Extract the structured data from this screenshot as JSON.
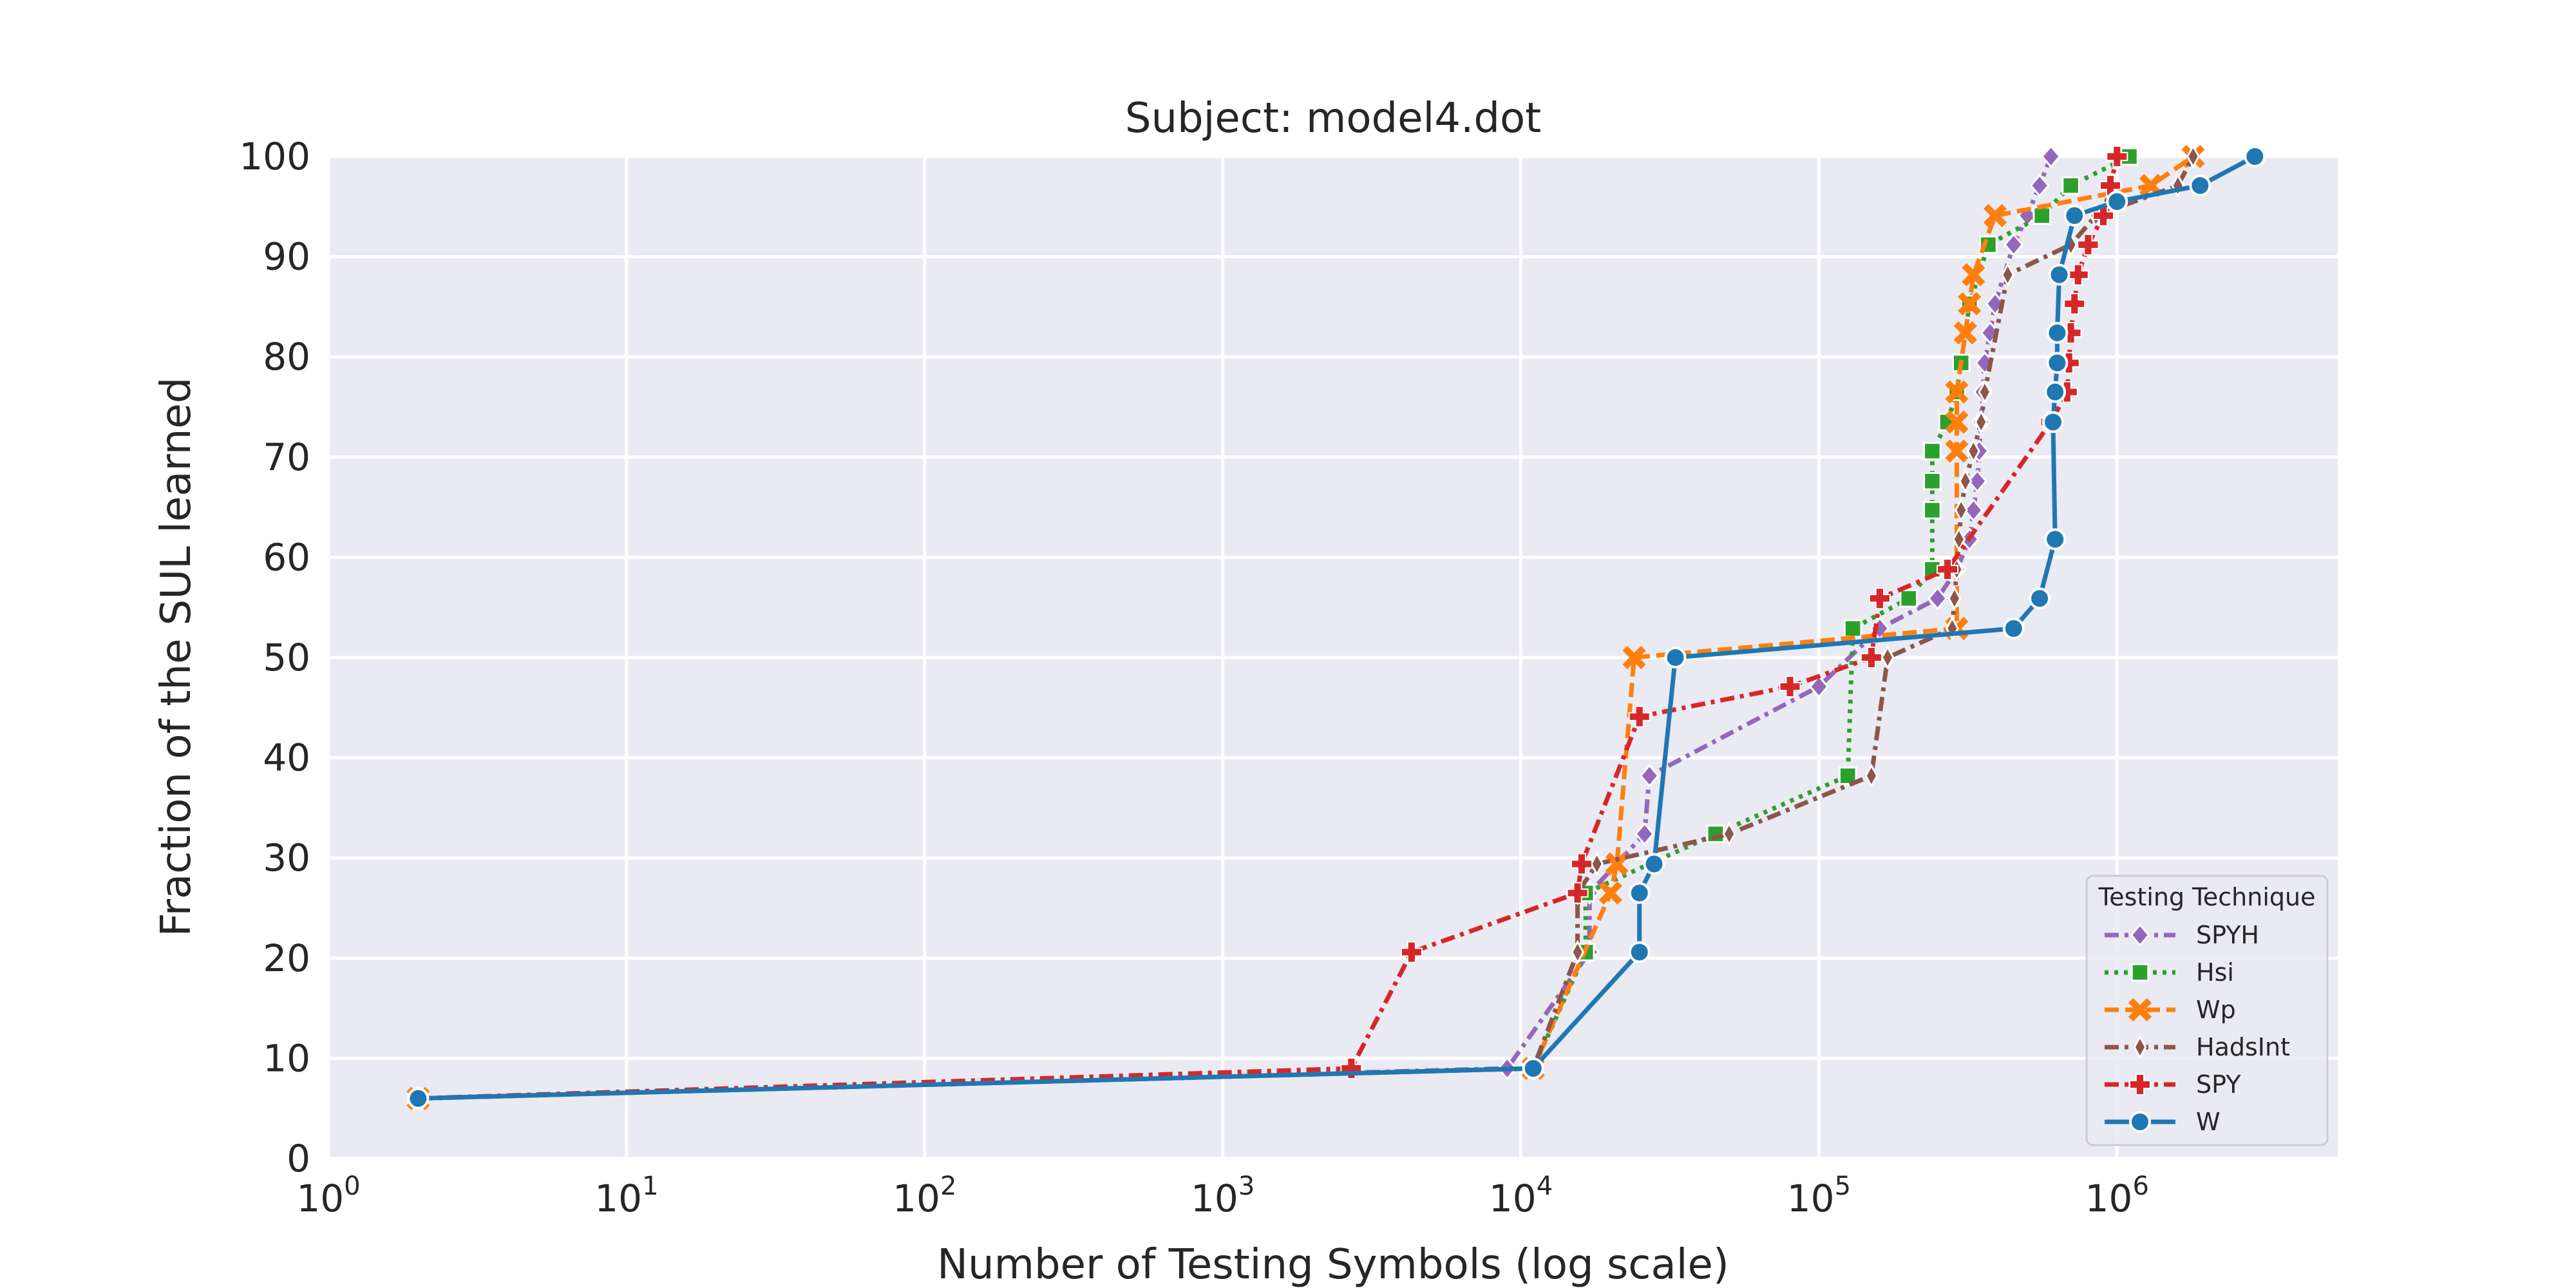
{
  "chart_data": {
    "type": "line",
    "title": "Subject: model4.dot",
    "xlabel": "Number of Testing Symbols (log scale)",
    "ylabel": "Fraction of the SUL learned",
    "x_scale": "log",
    "xlim": [
      1,
      5500000
    ],
    "ylim": [
      0,
      100
    ],
    "x_ticks": [
      {
        "base": "10",
        "exp": "0",
        "value": 1
      },
      {
        "base": "10",
        "exp": "1",
        "value": 10
      },
      {
        "base": "10",
        "exp": "2",
        "value": 100
      },
      {
        "base": "10",
        "exp": "3",
        "value": 1000
      },
      {
        "base": "10",
        "exp": "4",
        "value": 10000
      },
      {
        "base": "10",
        "exp": "5",
        "value": 100000
      },
      {
        "base": "10",
        "exp": "6",
        "value": 1000000
      }
    ],
    "y_ticks": [
      "0",
      "10",
      "20",
      "30",
      "40",
      "50",
      "60",
      "70",
      "80",
      "90",
      "100"
    ],
    "grid": true,
    "background": "#eaeaf2",
    "legend": {
      "title": "Testing Technique",
      "position": "lower-right"
    },
    "series": [
      {
        "name": "SPYH",
        "color": "#9467bd",
        "dash": "dashdot",
        "marker": "diamond",
        "points": [
          [
            2,
            6
          ],
          [
            9000,
            9
          ],
          [
            17000,
            20.6
          ],
          [
            17000,
            26.5
          ],
          [
            26000,
            32.4
          ],
          [
            27000,
            38.2
          ],
          [
            100000,
            47.1
          ],
          [
            160000,
            52.9
          ],
          [
            250000,
            55.9
          ],
          [
            290000,
            58.8
          ],
          [
            320000,
            61.8
          ],
          [
            330000,
            64.7
          ],
          [
            340000,
            67.6
          ],
          [
            345000,
            70.6
          ],
          [
            350000,
            73.5
          ],
          [
            355000,
            76.5
          ],
          [
            360000,
            79.4
          ],
          [
            375000,
            82.4
          ],
          [
            390000,
            85.3
          ],
          [
            450000,
            91.2
          ],
          [
            500000,
            94.1
          ],
          [
            550000,
            97.1
          ],
          [
            600000,
            100
          ]
        ]
      },
      {
        "name": "Hsi",
        "color": "#2ca02c",
        "dash": "dotted",
        "marker": "square",
        "points": [
          [
            2,
            6
          ],
          [
            11000,
            9
          ],
          [
            16500,
            20.6
          ],
          [
            16500,
            26.5
          ],
          [
            45000,
            32.4
          ],
          [
            125000,
            38.2
          ],
          [
            130000,
            52.9
          ],
          [
            200000,
            55.9
          ],
          [
            240000,
            58.8
          ],
          [
            240000,
            64.7
          ],
          [
            240000,
            67.6
          ],
          [
            240000,
            70.6
          ],
          [
            270000,
            73.5
          ],
          [
            290000,
            76.5
          ],
          [
            300000,
            79.4
          ],
          [
            320000,
            85.3
          ],
          [
            370000,
            91.2
          ],
          [
            560000,
            94.1
          ],
          [
            700000,
            97.1
          ],
          [
            1100000,
            100
          ]
        ]
      },
      {
        "name": "Wp",
        "color": "#ff7f0e",
        "dash": "dashed",
        "marker": "x",
        "points": [
          [
            2,
            6
          ],
          [
            11000,
            9
          ],
          [
            20000,
            26.5
          ],
          [
            21000,
            29.4
          ],
          [
            24000,
            50
          ],
          [
            290000,
            52.9
          ],
          [
            290000,
            70.6
          ],
          [
            290000,
            73.5
          ],
          [
            290000,
            76.5
          ],
          [
            310000,
            82.4
          ],
          [
            320000,
            85.3
          ],
          [
            330000,
            88.2
          ],
          [
            390000,
            94.1
          ],
          [
            1300000,
            97.1
          ],
          [
            1800000,
            100
          ]
        ]
      },
      {
        "name": "HadsInt",
        "color": "#8c564b",
        "dash": "dashdot",
        "marker": "thin_diamond",
        "points": [
          [
            2,
            6
          ],
          [
            11000,
            9
          ],
          [
            15500,
            20.6
          ],
          [
            15500,
            26.5
          ],
          [
            18000,
            29.4
          ],
          [
            50000,
            32.4
          ],
          [
            150000,
            38.2
          ],
          [
            170000,
            50
          ],
          [
            280000,
            52.9
          ],
          [
            285000,
            55.9
          ],
          [
            290000,
            58.8
          ],
          [
            295000,
            61.8
          ],
          [
            300000,
            64.7
          ],
          [
            310000,
            67.6
          ],
          [
            330000,
            70.6
          ],
          [
            350000,
            73.5
          ],
          [
            360000,
            76.5
          ],
          [
            430000,
            88.2
          ],
          [
            700000,
            91.2
          ],
          [
            850000,
            94.1
          ],
          [
            1600000,
            97.1
          ],
          [
            1800000,
            100
          ]
        ]
      },
      {
        "name": "SPY",
        "color": "#d62728",
        "dash": "dashdot",
        "marker": "plus",
        "points": [
          [
            2,
            6
          ],
          [
            2700,
            9
          ],
          [
            4300,
            20.6
          ],
          [
            15500,
            26.5
          ],
          [
            16000,
            29.4
          ],
          [
            25000,
            44.1
          ],
          [
            80000,
            47.1
          ],
          [
            150000,
            50
          ],
          [
            160000,
            55.9
          ],
          [
            270000,
            58.8
          ],
          [
            600000,
            73.5
          ],
          [
            680000,
            76.5
          ],
          [
            690000,
            79.4
          ],
          [
            700000,
            82.4
          ],
          [
            720000,
            85.3
          ],
          [
            740000,
            88.2
          ],
          [
            800000,
            91.2
          ],
          [
            900000,
            94.1
          ],
          [
            950000,
            97.1
          ],
          [
            1000000,
            100
          ]
        ]
      },
      {
        "name": "W",
        "color": "#1f77b4",
        "dash": "solid",
        "marker": "circle",
        "points": [
          [
            2,
            6
          ],
          [
            11000,
            9
          ],
          [
            25000,
            20.6
          ],
          [
            25000,
            26.5
          ],
          [
            28000,
            29.4
          ],
          [
            33000,
            50
          ],
          [
            450000,
            52.9
          ],
          [
            550000,
            55.9
          ],
          [
            620000,
            61.8
          ],
          [
            610000,
            73.5
          ],
          [
            620000,
            76.5
          ],
          [
            630000,
            79.4
          ],
          [
            630000,
            82.4
          ],
          [
            640000,
            88.2
          ],
          [
            720000,
            94.1
          ],
          [
            1000000,
            95.5
          ],
          [
            1900000,
            97.1
          ],
          [
            2900000,
            100
          ]
        ]
      }
    ]
  }
}
